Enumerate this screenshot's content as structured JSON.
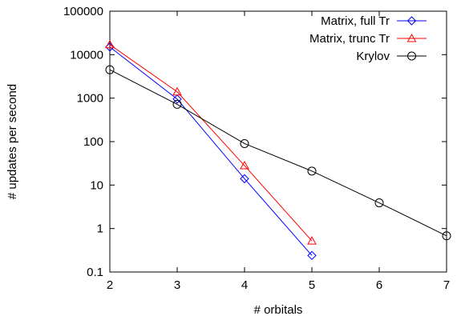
{
  "chart_data": {
    "type": "line",
    "title": "",
    "xlabel": "# orbitals",
    "ylabel": "# updates per second",
    "xlim": [
      2,
      7
    ],
    "ylim": [
      0.1,
      100000
    ],
    "yscale": "log",
    "grid": false,
    "legend_position": "top-right",
    "x_ticks": [
      "2",
      "3",
      "4",
      "5",
      "6",
      "7"
    ],
    "y_ticks": [
      "0.1",
      "1",
      "10",
      "100",
      "1000",
      "10000",
      "100000"
    ],
    "series": [
      {
        "name": "Matrix, full Tr",
        "color": "#0000ff",
        "marker": "diamond",
        "x": [
          2,
          3,
          4,
          5
        ],
        "y": [
          15000,
          950,
          14,
          0.24
        ]
      },
      {
        "name": "Matrix, trunc Tr",
        "color": "#ff0000",
        "marker": "triangle",
        "x": [
          2,
          3,
          4,
          5
        ],
        "y": [
          17000,
          1400,
          28,
          0.52
        ]
      },
      {
        "name": "Krylov",
        "color": "#000000",
        "marker": "circle",
        "x": [
          2,
          3,
          4,
          5,
          6,
          7
        ],
        "y": [
          4500,
          720,
          90,
          21,
          3.9,
          0.68
        ]
      }
    ]
  }
}
